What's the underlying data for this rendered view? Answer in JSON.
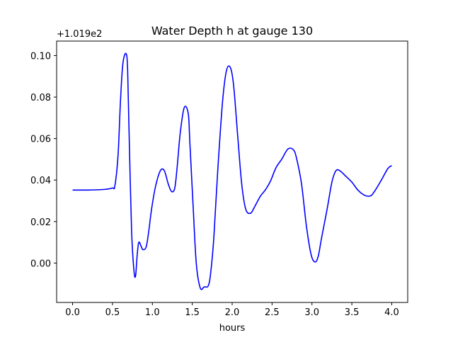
{
  "chart_data": {
    "type": "line",
    "title": "Water Depth h at gauge 130",
    "xlabel": "hours",
    "ylabel": "",
    "offset_label": "+1.019e2",
    "xlim": [
      -0.2,
      4.2
    ],
    "ylim": [
      -0.019,
      0.107
    ],
    "x_ticks": [
      0.0,
      0.5,
      1.0,
      1.5,
      2.0,
      2.5,
      3.0,
      3.5,
      4.0
    ],
    "x_tick_labels": [
      "0.0",
      "0.5",
      "1.0",
      "1.5",
      "2.0",
      "2.5",
      "3.0",
      "3.5",
      "4.0"
    ],
    "y_ticks": [
      0.0,
      0.02,
      0.04,
      0.06,
      0.08,
      0.1
    ],
    "y_tick_labels": [
      "0.00",
      "0.02",
      "0.04",
      "0.06",
      "0.08",
      "0.10"
    ],
    "grid": false,
    "line_color": "#0000ff",
    "series": [
      {
        "x": [
          0.0,
          0.2,
          0.4,
          0.5,
          0.53,
          0.57,
          0.6,
          0.63,
          0.67,
          0.69,
          0.71,
          0.74,
          0.77,
          0.79,
          0.81,
          0.83,
          0.86,
          0.88,
          0.92,
          0.95,
          0.99,
          1.04,
          1.1,
          1.15,
          1.2,
          1.24,
          1.28,
          1.31,
          1.35,
          1.4,
          1.45,
          1.47,
          1.51,
          1.55,
          1.6,
          1.65,
          1.7,
          1.73,
          1.77,
          1.82,
          1.88,
          1.93,
          1.98,
          2.02,
          2.07,
          2.12,
          2.17,
          2.23,
          2.28,
          2.35,
          2.42,
          2.48,
          2.55,
          2.62,
          2.7,
          2.77,
          2.81,
          2.87,
          2.93,
          2.99,
          3.04,
          3.08,
          3.12,
          3.19,
          3.25,
          3.3,
          3.35,
          3.42,
          3.5,
          3.58,
          3.67,
          3.74,
          3.8,
          3.87,
          3.95,
          4.0
        ],
        "y": [
          0.0352,
          0.0352,
          0.0355,
          0.0362,
          0.0372,
          0.052,
          0.078,
          0.096,
          0.101,
          0.093,
          0.06,
          0.015,
          -0.004,
          -0.006,
          0.004,
          0.01,
          0.008,
          0.0065,
          0.0075,
          0.014,
          0.026,
          0.037,
          0.0445,
          0.0445,
          0.038,
          0.0345,
          0.036,
          0.046,
          0.063,
          0.075,
          0.072,
          0.058,
          0.028,
          0.0,
          -0.012,
          -0.0115,
          -0.011,
          -0.005,
          0.012,
          0.045,
          0.078,
          0.093,
          0.094,
          0.085,
          0.061,
          0.038,
          0.026,
          0.024,
          0.027,
          0.032,
          0.0355,
          0.0395,
          0.046,
          0.05,
          0.055,
          0.0545,
          0.05,
          0.038,
          0.018,
          0.004,
          0.0005,
          0.0035,
          0.012,
          0.026,
          0.039,
          0.0445,
          0.0445,
          0.042,
          0.039,
          0.035,
          0.0325,
          0.0325,
          0.0355,
          0.04,
          0.0455,
          0.047
        ]
      }
    ]
  }
}
